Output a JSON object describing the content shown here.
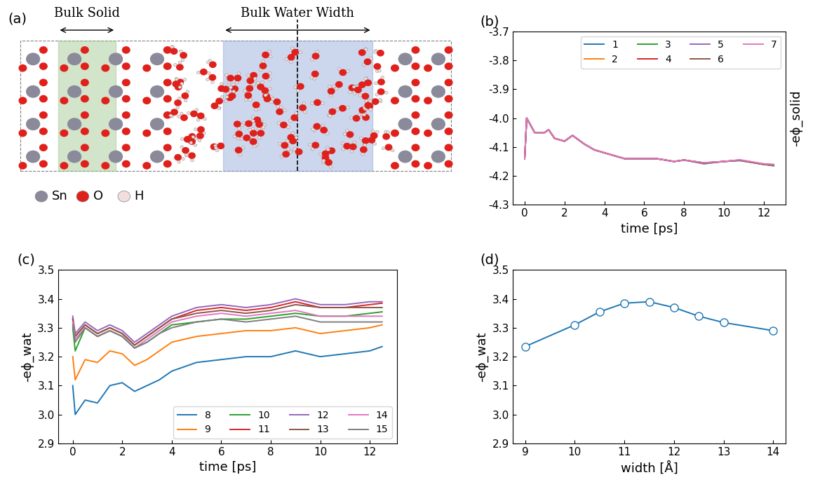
{
  "diagram": {
    "panel": "(a)",
    "left_label": "Bulk Solid",
    "right_label": "Bulk Water Width",
    "legend": [
      {
        "name": "Sn",
        "color": "#8a8a9a"
      },
      {
        "name": "O",
        "color": "#e0201b"
      },
      {
        "name": "H",
        "color": "#f2dede"
      }
    ]
  },
  "chart_data": [
    {
      "type": "line",
      "title": "(b)",
      "xlabel": "time [ps]",
      "ylabel": "-eϕ_solid",
      "x": [
        0,
        0.1,
        0.5,
        1,
        1.2,
        1.5,
        2,
        2.4,
        3,
        3.5,
        4,
        5,
        6,
        6.6,
        7.5,
        8,
        9,
        10,
        10.8,
        12,
        12.5
      ],
      "series": [
        {
          "name": "1",
          "color": "#1f77b4",
          "values": [
            -4.14,
            -4.0,
            -4.05,
            -4.05,
            -4.04,
            -4.07,
            -4.08,
            -4.06,
            -4.09,
            -4.11,
            -4.12,
            -4.14,
            -4.14,
            -4.14,
            -4.15,
            -4.145,
            -4.158,
            -4.15,
            -4.147,
            -4.16,
            -4.165
          ]
        },
        {
          "name": "2",
          "color": "#ff7f0e",
          "values": [
            -4.14,
            -4.0,
            -4.05,
            -4.05,
            -4.04,
            -4.07,
            -4.08,
            -4.06,
            -4.09,
            -4.11,
            -4.12,
            -4.14,
            -4.14,
            -4.14,
            -4.15,
            -4.145,
            -4.157,
            -4.15,
            -4.146,
            -4.16,
            -4.164
          ]
        },
        {
          "name": "3",
          "color": "#2ca02c",
          "values": [
            -4.14,
            -4.0,
            -4.05,
            -4.05,
            -4.04,
            -4.07,
            -4.08,
            -4.06,
            -4.09,
            -4.11,
            -4.12,
            -4.14,
            -4.14,
            -4.14,
            -4.15,
            -4.145,
            -4.156,
            -4.15,
            -4.146,
            -4.16,
            -4.163
          ]
        },
        {
          "name": "4",
          "color": "#d62728",
          "values": [
            -4.14,
            -4.0,
            -4.05,
            -4.05,
            -4.04,
            -4.07,
            -4.08,
            -4.06,
            -4.09,
            -4.11,
            -4.12,
            -4.14,
            -4.14,
            -4.14,
            -4.15,
            -4.145,
            -4.155,
            -4.15,
            -4.145,
            -4.16,
            -4.162
          ]
        },
        {
          "name": "5",
          "color": "#9467bd",
          "values": [
            -4.14,
            -4.0,
            -4.05,
            -4.05,
            -4.04,
            -4.07,
            -4.08,
            -4.06,
            -4.09,
            -4.11,
            -4.12,
            -4.14,
            -4.14,
            -4.14,
            -4.15,
            -4.145,
            -4.155,
            -4.15,
            -4.145,
            -4.159,
            -4.162
          ]
        },
        {
          "name": "6",
          "color": "#8c564b",
          "values": [
            -4.14,
            -4.0,
            -4.05,
            -4.05,
            -4.04,
            -4.07,
            -4.08,
            -4.06,
            -4.09,
            -4.11,
            -4.12,
            -4.14,
            -4.14,
            -4.14,
            -4.15,
            -4.145,
            -4.155,
            -4.15,
            -4.145,
            -4.159,
            -4.161
          ]
        },
        {
          "name": "7",
          "color": "#e377c2",
          "values": [
            -4.14,
            -4.0,
            -4.05,
            -4.05,
            -4.04,
            -4.07,
            -4.08,
            -4.06,
            -4.09,
            -4.11,
            -4.12,
            -4.14,
            -4.14,
            -4.14,
            -4.15,
            -4.145,
            -4.154,
            -4.15,
            -4.144,
            -4.158,
            -4.16
          ]
        }
      ],
      "xlim": [
        -0.6,
        13.1
      ],
      "ylim": [
        -4.3,
        -3.7
      ],
      "xticks": [
        0,
        2,
        4,
        6,
        8,
        10,
        12
      ],
      "yticks": [
        -4.3,
        -4.2,
        -4.1,
        -4.0,
        -3.9,
        -3.8,
        -3.7
      ],
      "legend": "upper right"
    },
    {
      "type": "line",
      "title": "(c)",
      "xlabel": "time [ps]",
      "ylabel": "-eϕ_wat",
      "x": [
        0,
        0.1,
        0.5,
        1,
        1.5,
        2,
        2.5,
        3,
        3.5,
        4,
        5,
        6,
        7,
        8,
        9,
        10,
        11,
        12,
        12.5
      ],
      "series": [
        {
          "name": "8",
          "color": "#1f77b4",
          "values": [
            3.1,
            3.0,
            3.05,
            3.04,
            3.1,
            3.11,
            3.08,
            3.1,
            3.12,
            3.15,
            3.18,
            3.19,
            3.2,
            3.2,
            3.22,
            3.2,
            3.21,
            3.22,
            3.235
          ]
        },
        {
          "name": "9",
          "color": "#ff7f0e",
          "values": [
            3.2,
            3.12,
            3.19,
            3.18,
            3.22,
            3.21,
            3.17,
            3.19,
            3.22,
            3.25,
            3.27,
            3.28,
            3.29,
            3.29,
            3.3,
            3.28,
            3.29,
            3.3,
            3.31
          ]
        },
        {
          "name": "10",
          "color": "#2ca02c",
          "values": [
            3.3,
            3.22,
            3.3,
            3.27,
            3.29,
            3.27,
            3.23,
            3.25,
            3.28,
            3.31,
            3.32,
            3.33,
            3.33,
            3.34,
            3.35,
            3.34,
            3.34,
            3.35,
            3.355
          ]
        },
        {
          "name": "11",
          "color": "#d62728",
          "values": [
            3.33,
            3.27,
            3.31,
            3.28,
            3.3,
            3.28,
            3.24,
            3.27,
            3.3,
            3.33,
            3.36,
            3.37,
            3.36,
            3.37,
            3.39,
            3.37,
            3.37,
            3.38,
            3.385
          ]
        },
        {
          "name": "12",
          "color": "#9467bd",
          "values": [
            3.34,
            3.28,
            3.32,
            3.29,
            3.31,
            3.29,
            3.25,
            3.28,
            3.31,
            3.34,
            3.37,
            3.38,
            3.37,
            3.38,
            3.4,
            3.38,
            3.38,
            3.39,
            3.39
          ]
        },
        {
          "name": "13",
          "color": "#8c564b",
          "values": [
            3.33,
            3.27,
            3.31,
            3.28,
            3.3,
            3.28,
            3.24,
            3.27,
            3.3,
            3.33,
            3.35,
            3.36,
            3.35,
            3.36,
            3.38,
            3.37,
            3.37,
            3.37,
            3.37
          ]
        },
        {
          "name": "14",
          "color": "#e377c2",
          "values": [
            3.32,
            3.26,
            3.3,
            3.27,
            3.29,
            3.27,
            3.23,
            3.26,
            3.29,
            3.32,
            3.34,
            3.35,
            3.34,
            3.35,
            3.36,
            3.34,
            3.34,
            3.34,
            3.34
          ]
        },
        {
          "name": "15",
          "color": "#7f7f7f",
          "values": [
            3.31,
            3.25,
            3.3,
            3.27,
            3.29,
            3.27,
            3.23,
            3.25,
            3.28,
            3.3,
            3.32,
            3.33,
            3.32,
            3.33,
            3.34,
            3.32,
            3.32,
            3.32,
            3.32
          ]
        }
      ],
      "xlim": [
        -0.6,
        13.1
      ],
      "ylim": [
        2.9,
        3.5
      ],
      "xticks": [
        0,
        2,
        4,
        6,
        8,
        10,
        12
      ],
      "yticks": [
        2.9,
        3.0,
        3.1,
        3.2,
        3.3,
        3.4,
        3.5
      ],
      "legend": "lower right"
    },
    {
      "type": "line",
      "title": "(d)",
      "xlabel": "width [Å]",
      "ylabel": "-eϕ_wat",
      "x": [
        9,
        10,
        10.5,
        11,
        11.5,
        12,
        12.5,
        13,
        14
      ],
      "series": [
        {
          "color": "#1f77b4",
          "marker": "o",
          "values": [
            3.235,
            3.31,
            3.355,
            3.385,
            3.39,
            3.37,
            3.34,
            3.318,
            3.29
          ]
        }
      ],
      "xlim": [
        8.75,
        14.25
      ],
      "ylim": [
        2.9,
        3.5
      ],
      "xticks": [
        9,
        10,
        11,
        12,
        13,
        14
      ],
      "yticks": [
        2.9,
        3.0,
        3.1,
        3.2,
        3.3,
        3.4,
        3.5
      ]
    }
  ]
}
